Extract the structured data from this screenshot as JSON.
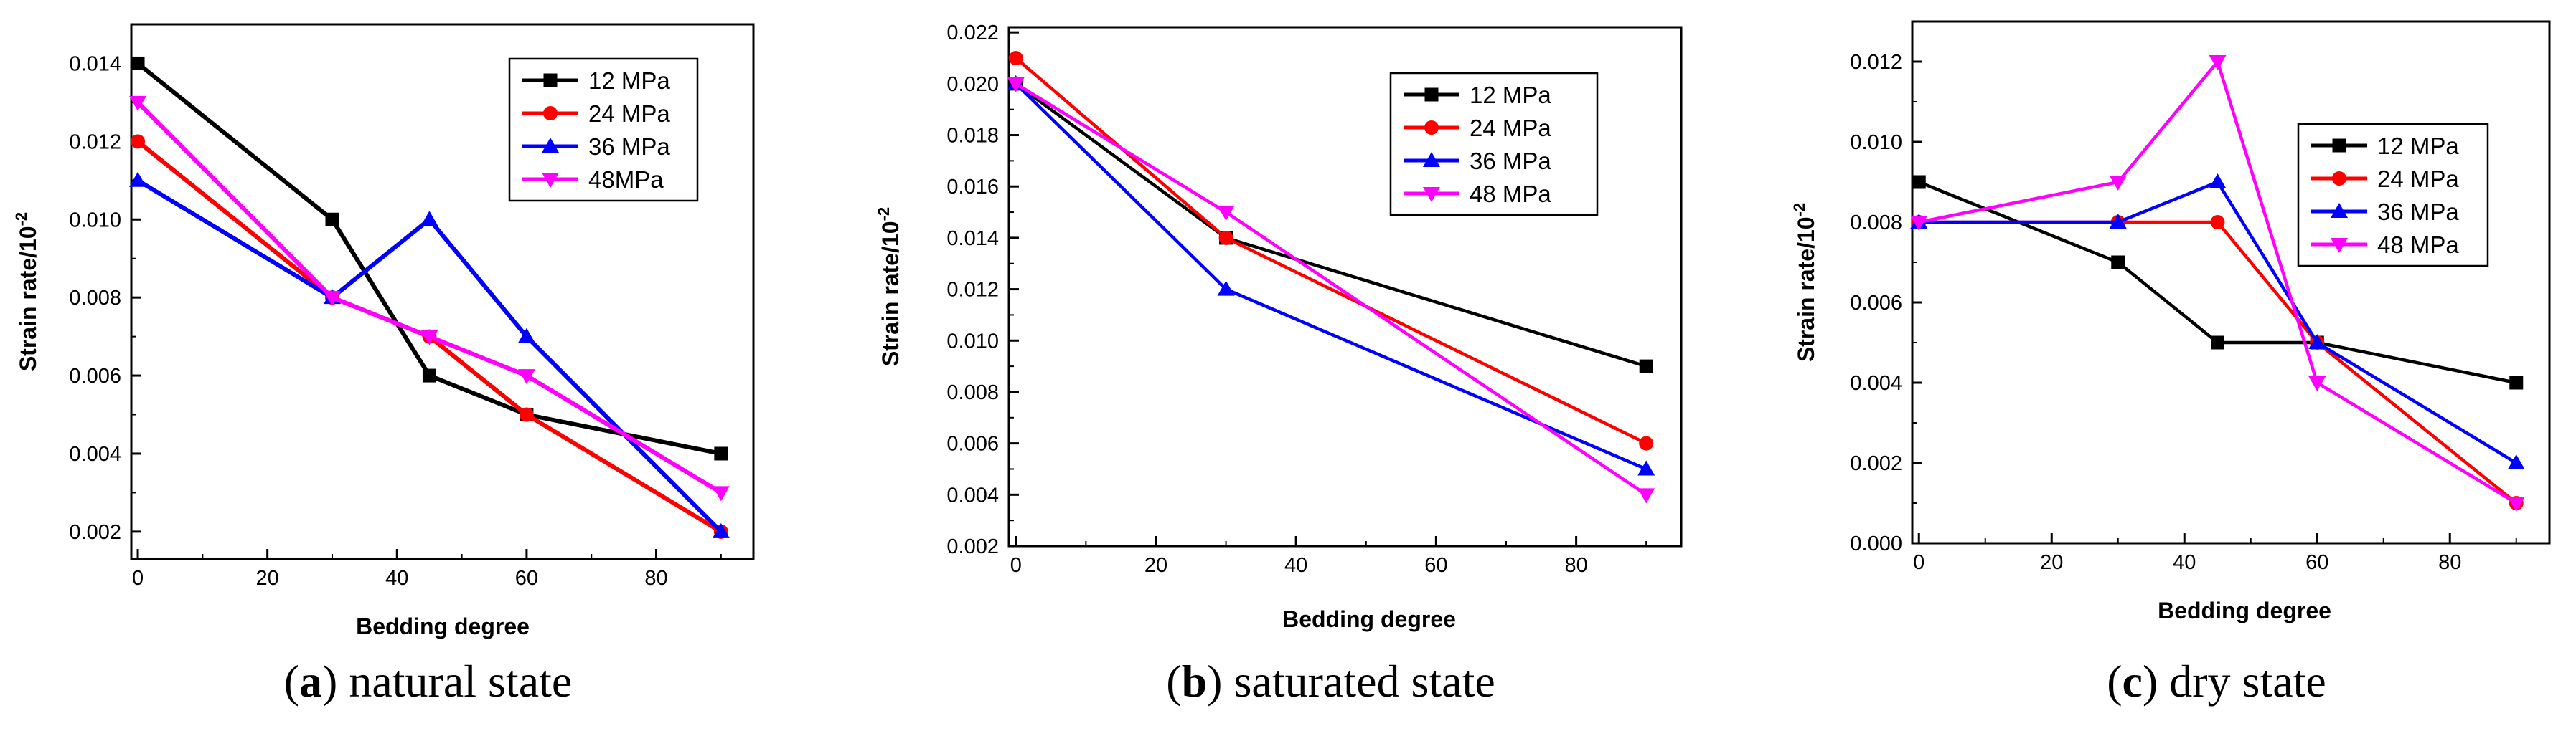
{
  "chart_data": [
    {
      "type": "line",
      "caption_letter": "a",
      "caption_rest": "natural state",
      "xlabel": "Bedding degree",
      "ylabel": "Strain rate/10",
      "ylabel_exp": "-2",
      "xlim": [
        -1,
        95
      ],
      "ylim": [
        0.0013,
        0.015
      ],
      "xticks": [
        0,
        20,
        40,
        60,
        80
      ],
      "xtick_labels": [
        "0",
        "20",
        "40",
        "60",
        "80"
      ],
      "yticks": [
        0.002,
        0.004,
        0.006,
        0.008,
        0.01,
        0.012,
        0.014
      ],
      "ytick_labels": [
        "0.002",
        "0.004",
        "0.006",
        "0.008",
        "0.010",
        "0.012",
        "0.014"
      ],
      "legend_position": "top-right",
      "series": [
        {
          "name": "12 MPa",
          "color": "#000000",
          "marker": "square",
          "x": [
            0,
            30,
            45,
            60,
            90
          ],
          "values": [
            0.014,
            0.01,
            0.006,
            0.005,
            0.004
          ]
        },
        {
          "name": "24 MPa",
          "color": "#ff0000",
          "marker": "circle",
          "x": [
            0,
            30,
            45,
            60,
            90
          ],
          "values": [
            0.012,
            0.008,
            0.007,
            0.005,
            0.002
          ]
        },
        {
          "name": "36 MPa",
          "color": "#0000ff",
          "marker": "triangle-up",
          "x": [
            0,
            30,
            45,
            60,
            90
          ],
          "values": [
            0.011,
            0.008,
            0.01,
            0.007,
            0.002
          ]
        },
        {
          "name": "48MPa",
          "color": "#ff00ff",
          "marker": "triangle-down",
          "x": [
            0,
            30,
            45,
            60,
            90
          ],
          "values": [
            0.013,
            0.008,
            0.007,
            0.006,
            0.003
          ]
        }
      ]
    },
    {
      "type": "line",
      "caption_letter": "b",
      "caption_rest": "saturated state",
      "xlabel": "Bedding degree",
      "ylabel": "Strain rate/10",
      "ylabel_exp": "-2",
      "xlim": [
        -1,
        95
      ],
      "ylim": [
        0.002,
        0.0222
      ],
      "xticks": [
        0,
        20,
        40,
        60,
        80
      ],
      "xtick_labels": [
        "0",
        "20",
        "40",
        "60",
        "80"
      ],
      "yticks": [
        0.002,
        0.004,
        0.006,
        0.008,
        0.01,
        0.012,
        0.014,
        0.016,
        0.018,
        0.02,
        0.022
      ],
      "ytick_labels": [
        "0.002",
        "0.004",
        "0.006",
        "0.008",
        "0.010",
        "0.012",
        "0.014",
        "0.016",
        "0.018",
        "0.020",
        "0.022"
      ],
      "legend_position": "top-right",
      "series": [
        {
          "name": "12 MPa",
          "color": "#000000",
          "marker": "square",
          "x": [
            0,
            30,
            90
          ],
          "values": [
            0.02,
            0.014,
            0.009
          ]
        },
        {
          "name": "24 MPa",
          "color": "#ff0000",
          "marker": "circle",
          "x": [
            0,
            30,
            90
          ],
          "values": [
            0.021,
            0.014,
            0.006
          ]
        },
        {
          "name": "36 MPa",
          "color": "#0000ff",
          "marker": "triangle-up",
          "x": [
            0,
            30,
            90
          ],
          "values": [
            0.02,
            0.012,
            0.005
          ]
        },
        {
          "name": "48 MPa",
          "color": "#ff00ff",
          "marker": "triangle-down",
          "x": [
            0,
            30,
            90
          ],
          "values": [
            0.02,
            0.015,
            0.004
          ]
        }
      ]
    },
    {
      "type": "line",
      "caption_letter": "c",
      "caption_rest": "dry state",
      "xlabel": "Bedding degree",
      "ylabel": "Strain rate/10",
      "ylabel_exp": "-2",
      "xlim": [
        -1,
        95
      ],
      "ylim": [
        0,
        0.013
      ],
      "xticks": [
        0,
        20,
        40,
        60,
        80
      ],
      "xtick_labels": [
        "0",
        "20",
        "40",
        "60",
        "80"
      ],
      "yticks": [
        0,
        0.002,
        0.004,
        0.006,
        0.008,
        0.01,
        0.012
      ],
      "ytick_labels": [
        "0.000",
        "0.002",
        "0.004",
        "0.006",
        "0.008",
        "0.010",
        "0.012"
      ],
      "legend_position": "top-right",
      "series": [
        {
          "name": "12 MPa",
          "color": "#000000",
          "marker": "square",
          "x": [
            0,
            30,
            45,
            60,
            90
          ],
          "values": [
            0.009,
            0.007,
            0.005,
            0.005,
            0.004
          ]
        },
        {
          "name": "24 MPa",
          "color": "#ff0000",
          "marker": "circle",
          "x": [
            0,
            30,
            45,
            60,
            90
          ],
          "values": [
            0.008,
            0.008,
            0.008,
            0.005,
            0.001
          ]
        },
        {
          "name": "36 MPa",
          "color": "#0000ff",
          "marker": "triangle-up",
          "x": [
            0,
            30,
            45,
            60,
            90
          ],
          "values": [
            0.008,
            0.008,
            0.009,
            0.005,
            0.002
          ]
        },
        {
          "name": "48 MPa",
          "color": "#ff00ff",
          "marker": "triangle-down",
          "x": [
            0,
            30,
            45,
            60,
            90
          ],
          "values": [
            0.008,
            0.009,
            0.012,
            0.004,
            0.001
          ]
        }
      ]
    }
  ]
}
